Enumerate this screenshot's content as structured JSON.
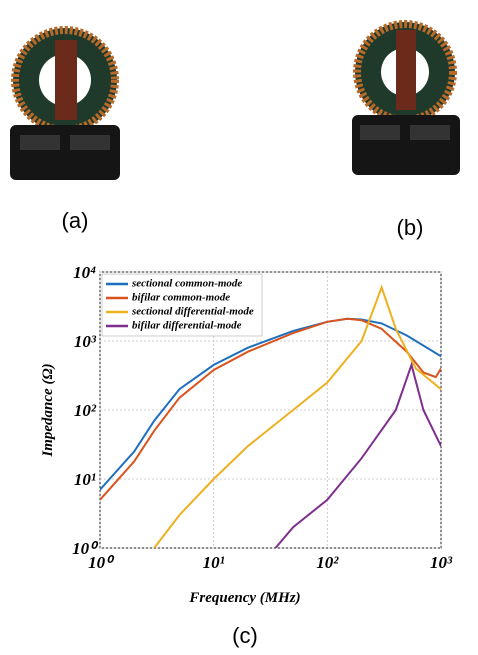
{
  "panel_labels": [
    "(a)",
    "(b)",
    "(c)"
  ],
  "chart_data": {
    "type": "line",
    "x_label": "Frequency (MHz)",
    "y_label": "Impedance (Ω)",
    "x_log": true,
    "y_log": true,
    "grid": true,
    "legend": "upper-left",
    "xlim": [
      1,
      1000
    ],
    "ylim": [
      1,
      10000
    ],
    "xticks": [
      {
        "value": 1,
        "label": "10⁰"
      },
      {
        "value": 10,
        "label": "10¹"
      },
      {
        "value": 100,
        "label": "10²"
      },
      {
        "value": 1000,
        "label": "10³"
      }
    ],
    "yticks": [
      {
        "value": 1,
        "label": "10⁰"
      },
      {
        "value": 10,
        "label": "10¹"
      },
      {
        "value": 100,
        "label": "10²"
      },
      {
        "value": 1000,
        "label": "10³"
      },
      {
        "value": 10000,
        "label": "10⁴"
      }
    ],
    "series": [
      {
        "name": "sectional common-mode",
        "color": "#1f6fbf",
        "x": [
          1,
          2,
          3,
          5,
          10,
          20,
          50,
          100,
          150,
          200,
          300,
          500,
          1000
        ],
        "values": [
          7,
          25,
          70,
          200,
          450,
          800,
          1400,
          1900,
          2100,
          2050,
          1800,
          1200,
          600
        ]
      },
      {
        "name": "bifilar common-mode",
        "color": "#d9541e",
        "x": [
          1,
          2,
          3,
          5,
          10,
          20,
          50,
          100,
          150,
          200,
          300,
          500,
          700,
          900,
          1000
        ],
        "values": [
          5,
          18,
          50,
          150,
          380,
          700,
          1300,
          1900,
          2100,
          2000,
          1500,
          700,
          350,
          300,
          400
        ]
      },
      {
        "name": "sectional differential-mode",
        "color": "#edb120",
        "x": [
          3,
          5,
          10,
          20,
          50,
          100,
          200,
          300,
          400,
          600,
          1000
        ],
        "values": [
          1,
          3,
          10,
          30,
          100,
          250,
          1000,
          6000,
          1500,
          400,
          200
        ]
      },
      {
        "name": "bifilar differential-mode",
        "color": "#7e2f8e",
        "x": [
          35,
          50,
          100,
          200,
          400,
          550,
          700,
          1000
        ],
        "values": [
          1,
          2,
          5,
          20,
          100,
          450,
          100,
          30
        ]
      }
    ]
  }
}
